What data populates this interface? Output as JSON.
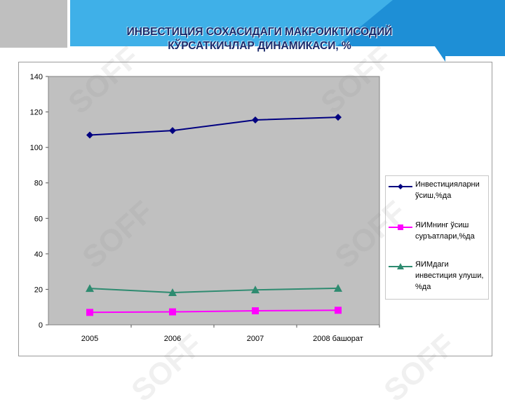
{
  "slide": {
    "title_line1": "ИНВЕСТИЦИЯ СОХАСИДАГИ МАКРОИКТИСОДИЙ",
    "title_line2": "КЎРСАТКИЧЛАР ДИНАМИКАСИ, %",
    "watermark": "SOFF",
    "colors": {
      "header_blue": "#1e8fd6",
      "header_light": "#3fb0e8",
      "title": "#1a2a6b",
      "plot_bg": "#c0c0c0"
    }
  },
  "chart_data": {
    "type": "line",
    "categories": [
      "2005",
      "2006",
      "2007",
      "2008 башорат"
    ],
    "ylim": [
      0,
      140
    ],
    "yticks": [
      0,
      20,
      40,
      60,
      80,
      100,
      120,
      140
    ],
    "grid": false,
    "legend_position": "right",
    "series": [
      {
        "name": "Инвестицияларни ўсиш,%да",
        "color": "#000080",
        "marker": "diamond",
        "values": [
          107,
          109.5,
          115.5,
          117
        ]
      },
      {
        "name": "ЯИМнинг ўсиш суръатлари,%да",
        "color": "#ff00ff",
        "marker": "square",
        "values": [
          7,
          7.3,
          7.9,
          8.2
        ]
      },
      {
        "name": "ЯИМдаги инвестиция улуши, %да",
        "color": "#2e8b70",
        "marker": "triangle",
        "values": [
          20.5,
          18.2,
          19.7,
          20.6
        ]
      }
    ]
  }
}
